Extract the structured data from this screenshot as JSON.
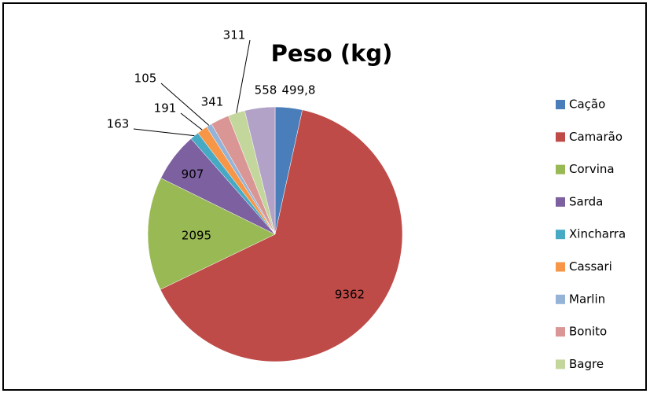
{
  "chart_data": {
    "type": "pie",
    "title": "Peso (kg)",
    "categories": [
      "Cação",
      "Camarão",
      "Corvina",
      "Sarda",
      "Xincharra",
      "Cassari",
      "Marlin",
      "Bonito",
      "Bagre",
      null
    ],
    "values": [
      499.8,
      9362,
      2095,
      907,
      163,
      191,
      105,
      341,
      311,
      558
    ],
    "value_labels": [
      "499,8",
      "9362",
      "2095",
      "907",
      "163",
      "191",
      "105",
      "341",
      "311",
      "558"
    ],
    "colors": [
      "#4a7ebb",
      "#be4b48",
      "#98b954",
      "#7d60a0",
      "#46aac5",
      "#f79646",
      "#95b3d7",
      "#d99694",
      "#c3d69b",
      "#b3a2c7"
    ],
    "legend": "right"
  }
}
